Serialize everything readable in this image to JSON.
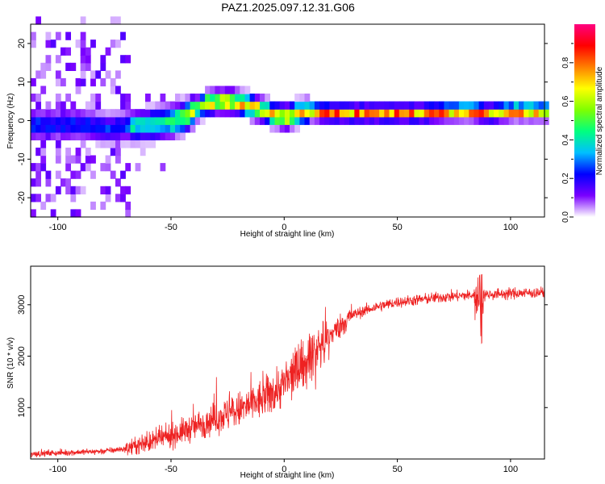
{
  "title": "PAZ1.2025.097.12.31.G06",
  "chart_data": [
    {
      "type": "heatmap",
      "xlabel": "Height of straight line (km)",
      "ylabel": "Frequency (Hz)",
      "xlim": [
        -112,
        115
      ],
      "ylim": [
        -25,
        25
      ],
      "xticks": [
        -100,
        -50,
        0,
        50,
        100
      ],
      "yticks": [
        -20,
        -10,
        0,
        10,
        20
      ],
      "colorbar": {
        "label": "Normalized spectral amplitude",
        "range": [
          0,
          1
        ],
        "ticks": [
          "0.0",
          "0.2",
          "0.4",
          "0.6",
          "0.8"
        ],
        "colors": [
          "#ffffff",
          "#7a00ff",
          "#0000ff",
          "#00bfff",
          "#00ff7f",
          "#7fff00",
          "#ffff00",
          "#ff7f00",
          "#ff0000",
          "#ff0080"
        ]
      },
      "ridge": {
        "x": [
          -88,
          -80,
          -70,
          -60,
          -50,
          -45,
          -40,
          -35,
          -30,
          -25,
          -20,
          -15,
          -10,
          -5,
          0,
          5,
          10,
          20,
          40,
          60,
          80,
          90,
          100,
          115
        ],
        "y": [
          -2,
          -3,
          -2.5,
          -2,
          -1,
          0,
          2,
          3.5,
          4,
          4,
          3.5,
          2.5,
          1.5,
          0.5,
          0,
          1,
          1.5,
          1,
          1,
          1,
          1.5,
          1,
          1.5,
          1.5
        ]
      },
      "grid": false
    },
    {
      "type": "line",
      "xlabel": "Height of straight line (km)",
      "ylabel": "SNR (10 * v/v)",
      "xlim": [
        -112,
        115
      ],
      "ylim": [
        0,
        3750
      ],
      "xticks": [
        -100,
        -50,
        0,
        50,
        100
      ],
      "yticks": [
        1000,
        2000,
        3000
      ],
      "series_color": "#ee2222",
      "trend": {
        "x": [
          -112,
          -100,
          -80,
          -70,
          -60,
          -50,
          -40,
          -30,
          -20,
          -10,
          0,
          10,
          20,
          30,
          40,
          50,
          60,
          70,
          80,
          90,
          100,
          115
        ],
        "y": [
          100,
          120,
          150,
          200,
          320,
          450,
          620,
          800,
          950,
          1150,
          1450,
          1900,
          2400,
          2800,
          2950,
          3050,
          3100,
          3150,
          3180,
          3200,
          3220,
          3240
        ]
      },
      "grid": false
    }
  ]
}
